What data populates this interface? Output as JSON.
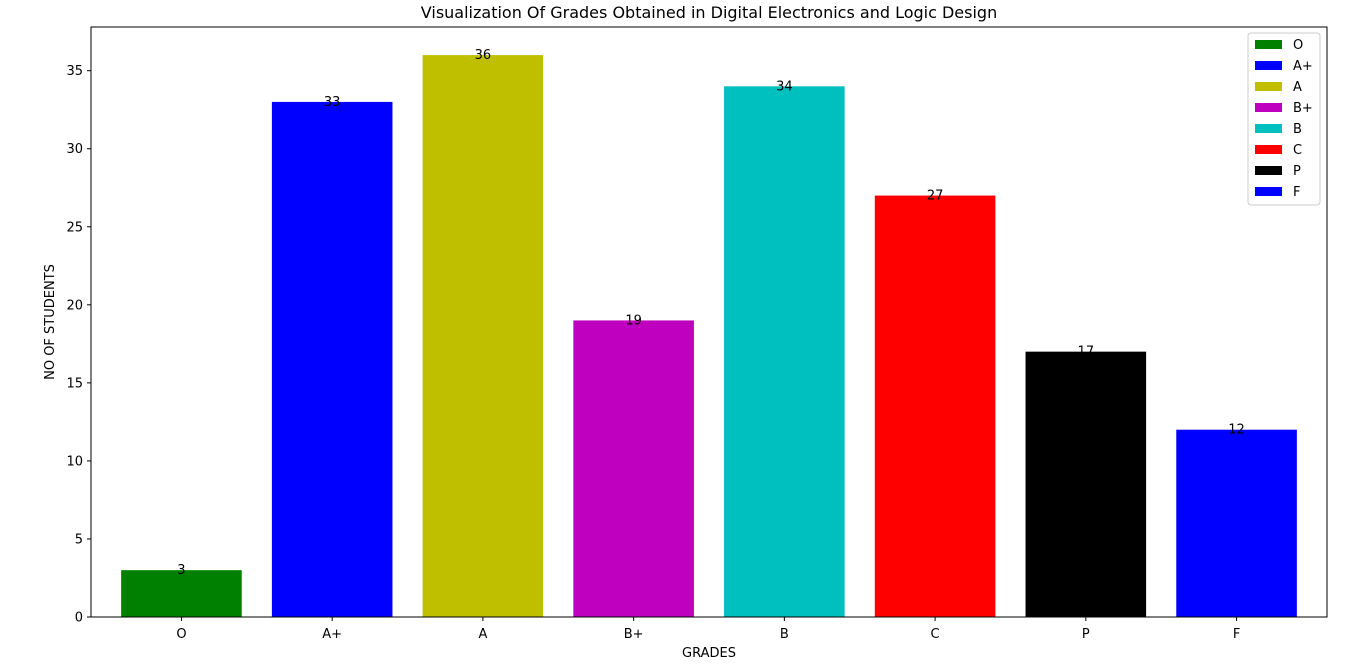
{
  "chart_data": {
    "type": "bar",
    "title": "Visualization Of Grades Obtained in Digital Electronics and Logic Design",
    "xlabel": "GRADES",
    "ylabel": "NO OF STUDENTS",
    "categories": [
      "O",
      "A+",
      "A",
      "B+",
      "B",
      "C",
      "P",
      "F"
    ],
    "values": [
      3,
      33,
      36,
      19,
      34,
      27,
      17,
      12
    ],
    "colors": [
      "#008000",
      "#0000ff",
      "#bfbf00",
      "#bf00bf",
      "#00bfbf",
      "#ff0000",
      "#000000",
      "#0000ff"
    ],
    "ylim": [
      0,
      37.8
    ],
    "yticks": [
      0,
      5,
      10,
      15,
      20,
      25,
      30,
      35
    ],
    "legend": {
      "placement": "top-right",
      "entries": [
        "O",
        "A+",
        "A",
        "B+",
        "B",
        "C",
        "P",
        "F"
      ]
    },
    "grid": false
  }
}
